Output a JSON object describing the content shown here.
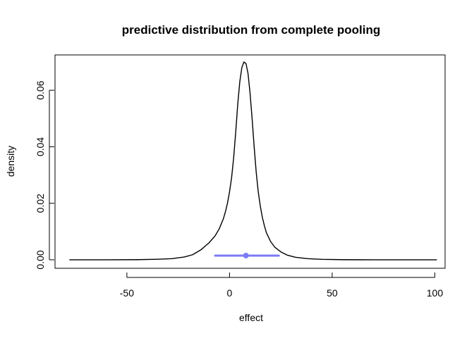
{
  "chart_data": {
    "type": "line",
    "title": "predictive distribution from complete pooling",
    "xlabel": "effect",
    "ylabel": "density",
    "xlim": [
      -85,
      105
    ],
    "ylim": [
      -0.003,
      0.0725
    ],
    "x_ticks": [
      -50,
      0,
      50,
      100
    ],
    "x_tick_labels": [
      "-50",
      "0",
      "50",
      "100"
    ],
    "y_ticks": [
      0.0,
      0.02,
      0.04,
      0.06
    ],
    "y_tick_labels": [
      "0.00",
      "0.02",
      "0.04",
      "0.06"
    ],
    "grid": false,
    "series": [
      {
        "color": "#000000",
        "x": [
          -78,
          -60,
          -45,
          -35,
          -28,
          -22,
          -18,
          -14,
          -10,
          -7,
          -5,
          -3,
          -2,
          -1,
          0,
          1,
          2,
          3,
          4,
          5,
          6,
          7,
          8,
          9,
          10,
          11,
          12,
          13,
          14,
          15,
          16,
          17,
          18,
          19,
          20,
          22,
          25,
          28,
          32,
          38,
          45,
          55,
          70,
          85,
          101
        ],
        "y": [
          0.0,
          0.0,
          5e-05,
          0.0002,
          0.0004,
          0.001,
          0.0018,
          0.0035,
          0.006,
          0.0085,
          0.011,
          0.0145,
          0.017,
          0.02,
          0.024,
          0.029,
          0.036,
          0.045,
          0.055,
          0.063,
          0.068,
          0.07,
          0.0695,
          0.066,
          0.059,
          0.05,
          0.04,
          0.031,
          0.024,
          0.019,
          0.015,
          0.012,
          0.0095,
          0.008,
          0.0065,
          0.0045,
          0.0028,
          0.0017,
          0.0009,
          0.0004,
          0.00015,
          5e-05,
          0.0,
          0.0,
          0.0
        ]
      }
    ],
    "interval": {
      "color": "#7b7bf5",
      "low": -7,
      "high": 24,
      "point": 8,
      "y": 0.0015
    }
  }
}
